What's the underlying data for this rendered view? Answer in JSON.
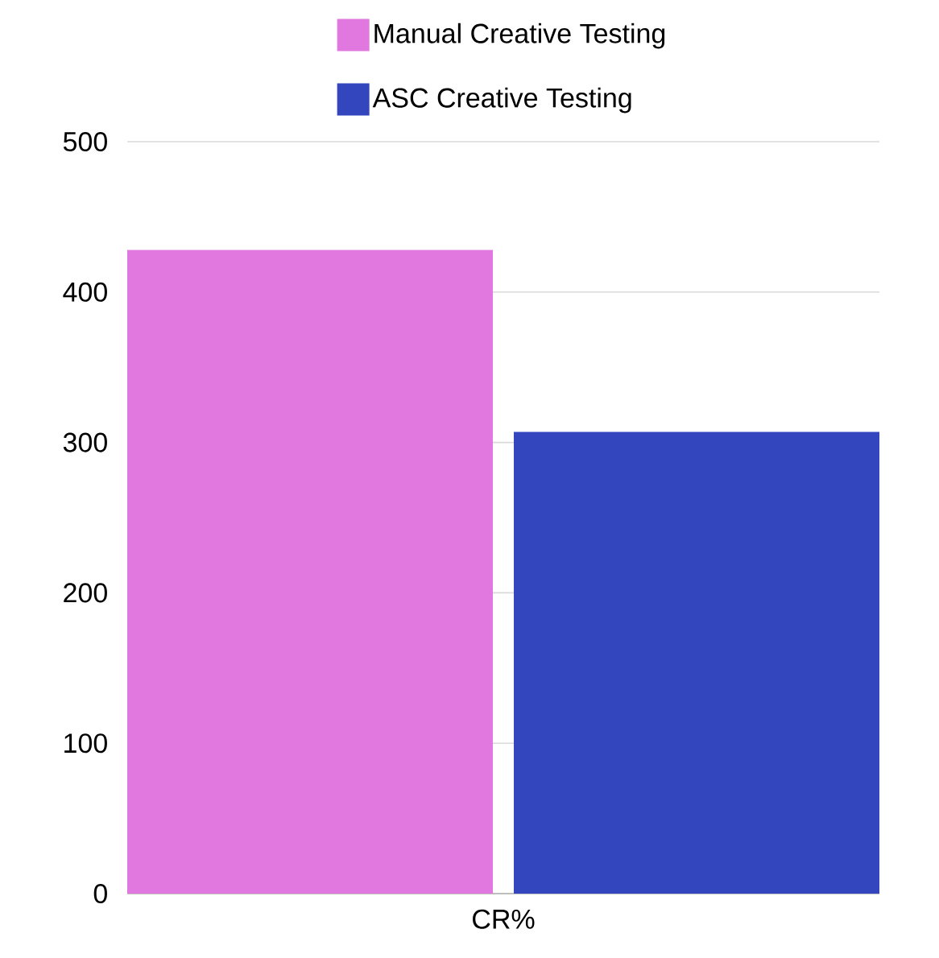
{
  "chart_data": {
    "type": "bar",
    "categories": [
      "CR%"
    ],
    "series": [
      {
        "name": "Manual Creative Testing",
        "color": "#e078df",
        "values": [
          428
        ]
      },
      {
        "name": "ASC Creative Testing",
        "color": "#3346bd",
        "values": [
          307
        ]
      }
    ],
    "ylim": [
      0,
      500
    ],
    "yticks": [
      0,
      100,
      200,
      300,
      400,
      500
    ],
    "grid": "y",
    "legend": "top"
  }
}
